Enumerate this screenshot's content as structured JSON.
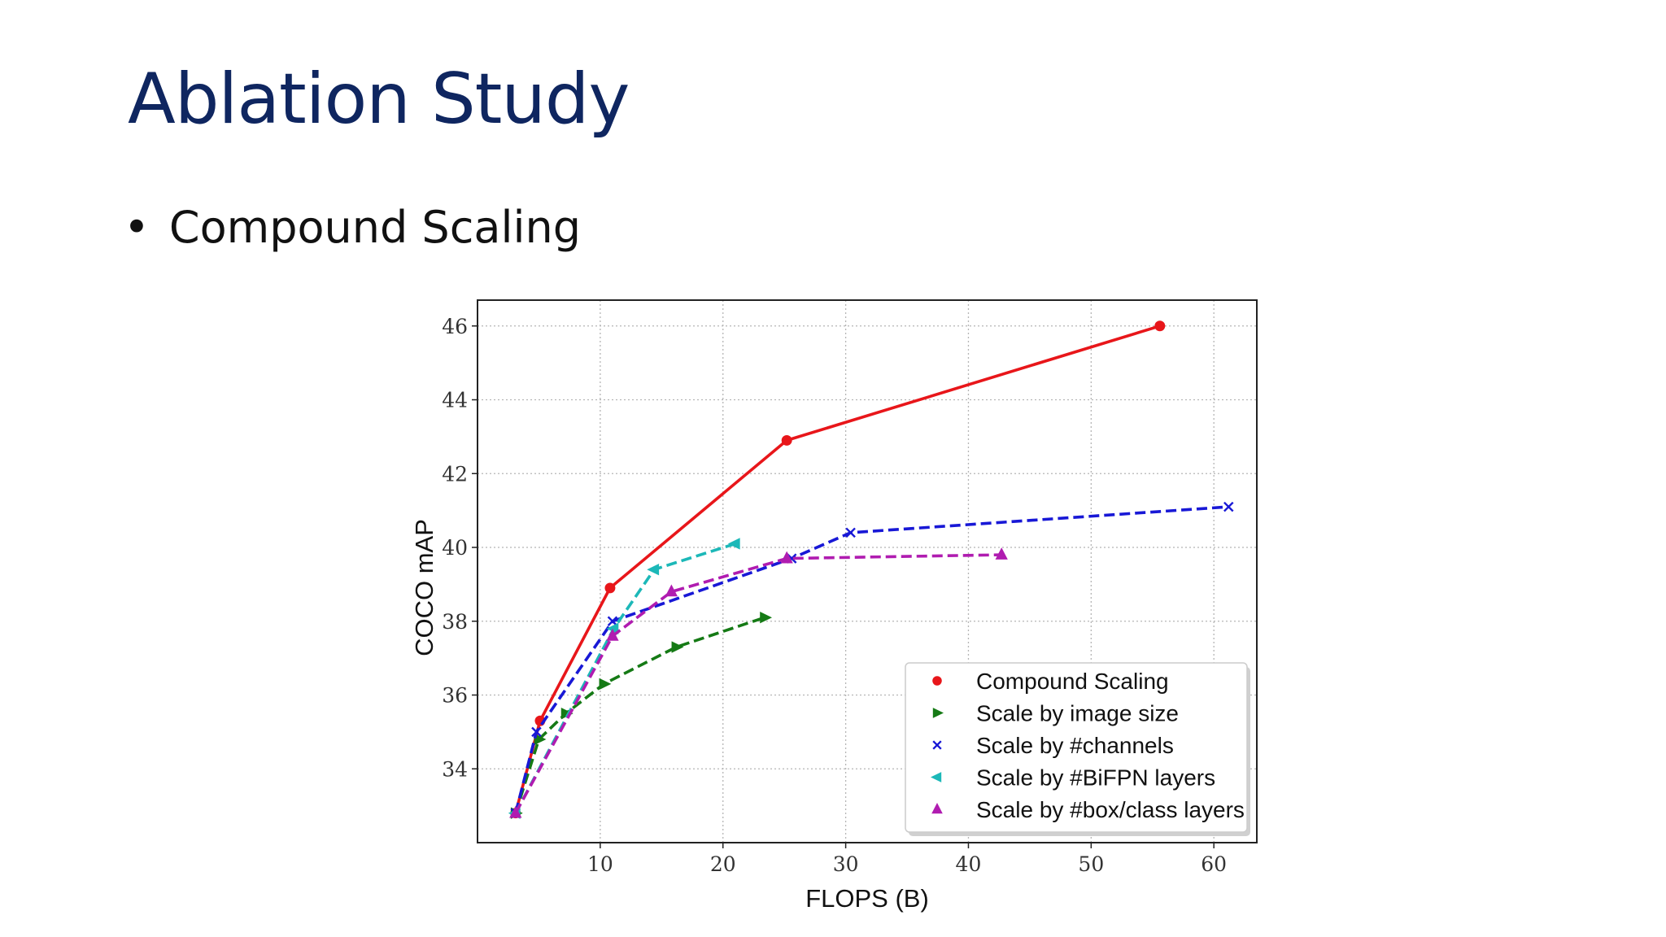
{
  "slide": {
    "title": "Ablation Study",
    "bullet": "Compound Scaling"
  },
  "chart_data": {
    "type": "line",
    "title": "",
    "xlabel": "FLOPS (B)",
    "ylabel": "COCO mAP",
    "xlim": [
      0,
      63.5
    ],
    "ylim": [
      32.0,
      46.7
    ],
    "xticks": [
      10,
      20,
      30,
      40,
      50,
      60
    ],
    "yticks": [
      34,
      36,
      38,
      40,
      42,
      44,
      46
    ],
    "grid": true,
    "legend_position": "lower-right",
    "series": [
      {
        "name": "Compound Scaling",
        "color": "#e8161a",
        "marker": "circle",
        "linestyle": "solid",
        "x": [
          3.1,
          5.1,
          10.8,
          25.2,
          55.6
        ],
        "y": [
          32.8,
          35.3,
          38.9,
          42.9,
          46.0
        ]
      },
      {
        "name": "Scale by image size",
        "color": "#157a15",
        "marker": "triangle-right",
        "linestyle": "dashed",
        "x": [
          3.1,
          5.0,
          7.2,
          10.3,
          16.2,
          23.4
        ],
        "y": [
          32.8,
          34.8,
          35.5,
          36.3,
          37.3,
          38.1
        ]
      },
      {
        "name": "Scale by #channels",
        "color": "#1818d6",
        "marker": "x",
        "linestyle": "dashed",
        "x": [
          3.1,
          4.8,
          11.0,
          25.6,
          30.4,
          61.2
        ],
        "y": [
          32.8,
          35.0,
          38.0,
          39.7,
          40.4,
          41.1
        ]
      },
      {
        "name": "Scale by #BiFPN layers",
        "color": "#1cb8b8",
        "marker": "triangle-left",
        "linestyle": "dashed",
        "x": [
          3.1,
          11.1,
          14.4,
          21.0
        ],
        "y": [
          32.8,
          37.8,
          39.4,
          40.1
        ]
      },
      {
        "name": "Scale by #box/class layers",
        "color": "#b01cb0",
        "marker": "triangle-up",
        "linestyle": "dashed",
        "x": [
          3.1,
          11.0,
          15.8,
          25.2,
          42.7
        ],
        "y": [
          32.8,
          37.6,
          38.8,
          39.7,
          39.8
        ]
      }
    ]
  }
}
